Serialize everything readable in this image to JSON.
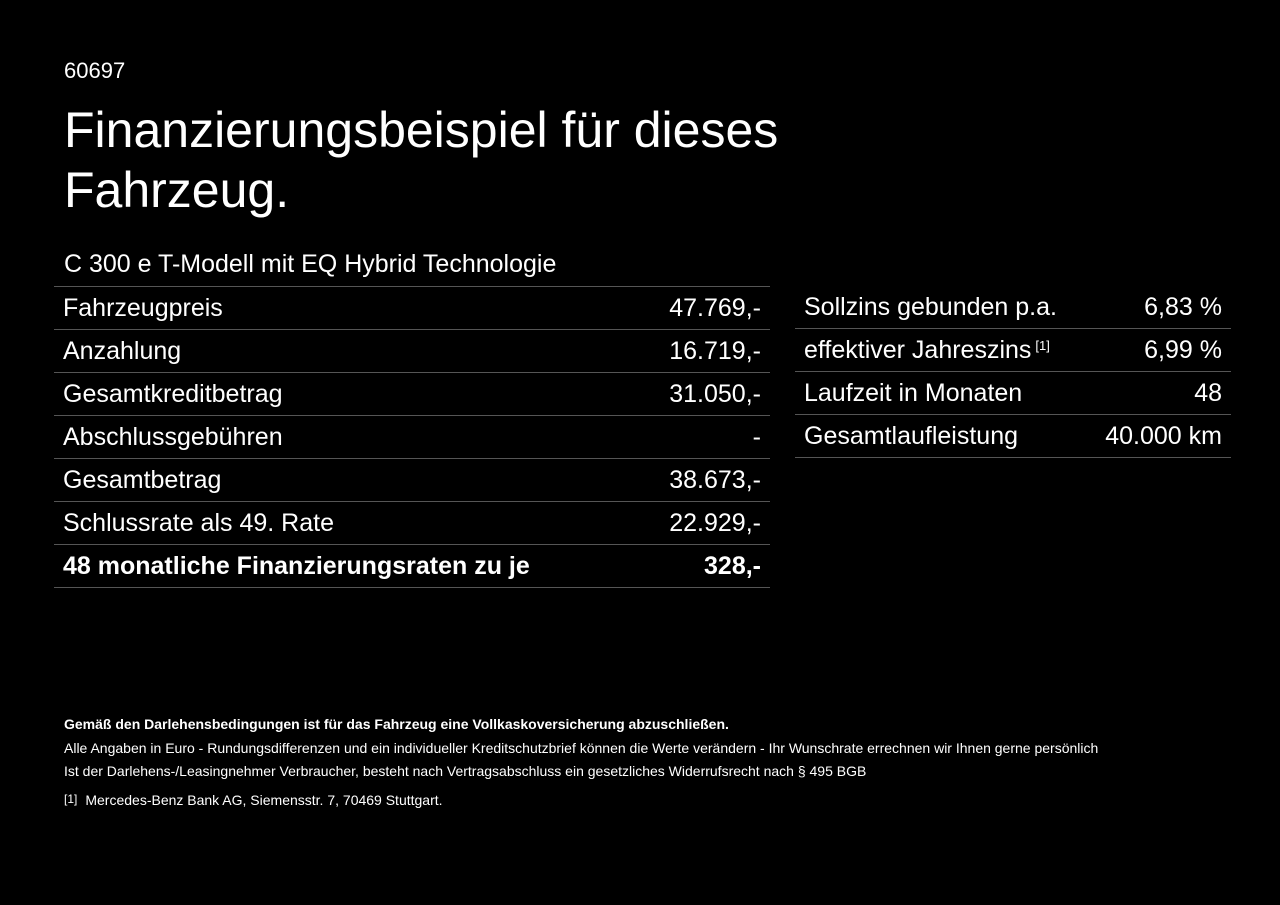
{
  "header": {
    "code": "60697",
    "title_line1": "Finanzierungsbeispiel für dieses",
    "title_line2": "Fahrzeug.",
    "model": "C 300 e T-Modell mit EQ Hybrid Technologie"
  },
  "left_table": {
    "rows": [
      [
        "Fahrzeugpreis",
        "47.769,-"
      ],
      [
        "Anzahlung",
        "16.719,-"
      ],
      [
        "Gesamtkreditbetrag",
        "31.050,-"
      ],
      [
        "Abschlussgebühren",
        "-"
      ],
      [
        "Gesamtbetrag",
        "38.673,-"
      ],
      [
        "Schlussrate als 49. Rate",
        "22.929,-"
      ],
      [
        "48 monatliche Finanzierungsraten zu je",
        "328,-"
      ]
    ]
  },
  "right_table": {
    "rows": [
      [
        "Sollzins gebunden p.a.",
        "6,83 %"
      ],
      [
        "effektiver Jahreszins",
        "6,99 %"
      ],
      [
        "Laufzeit in Monaten",
        "48"
      ],
      [
        "Gesamtlaufleistung",
        "40.000 km"
      ]
    ],
    "footnote_marker": "[1]"
  },
  "footer": {
    "bold_note": "Gemäß den Darlehensbedingungen ist für das Fahrzeug eine Vollkaskoversicherung abzuschließen.",
    "line1": "Alle Angaben in Euro - Rundungsdifferenzen und ein individueller Kreditschutzbrief können die Werte verändern - Ihr Wunschrate errechnen wir Ihnen gerne persönlich",
    "line2": "Ist der Darlehens-/Leasingnehmer Verbraucher, besteht nach Vertragsabschluss ein gesetzliches Widerrufsrecht nach § 495 BGB",
    "footnote_marker": "[1]",
    "footnote": "Mercedes-Benz Bank AG, Siemensstr. 7, 70469 Stuttgart."
  }
}
